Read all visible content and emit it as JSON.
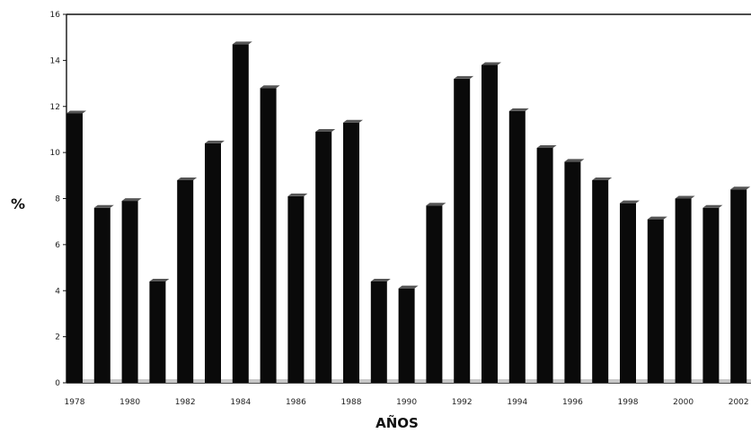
{
  "chart_data": {
    "type": "bar",
    "title": "",
    "xlabel": "AÑOS",
    "ylabel": "%",
    "ylim": [
      0,
      16
    ],
    "yticks": [
      "0",
      "2",
      "4",
      "6",
      "8",
      "10",
      "12",
      "14",
      "16"
    ],
    "x_tick_labels": [
      "1978",
      "1980",
      "1982",
      "1984",
      "1986",
      "1988",
      "1990",
      "1992",
      "1994",
      "1996",
      "1998",
      "2000",
      "2002"
    ],
    "categories": [
      1978,
      1979,
      1980,
      1981,
      1982,
      1983,
      1984,
      1985,
      1986,
      1987,
      1988,
      1989,
      1990,
      1991,
      1992,
      1993,
      1994,
      1995,
      1996,
      1997,
      1998,
      1999,
      2000,
      2001,
      2002
    ],
    "values": [
      11.7,
      7.6,
      7.9,
      4.4,
      8.8,
      10.4,
      14.7,
      12.8,
      8.1,
      10.9,
      11.3,
      4.4,
      4.1,
      7.7,
      13.2,
      13.8,
      11.8,
      10.2,
      9.6,
      8.8,
      7.8,
      7.1,
      8.0,
      7.6,
      8.4
    ],
    "grid": false,
    "legend": "none",
    "bar_color": "#0a0a0a"
  }
}
